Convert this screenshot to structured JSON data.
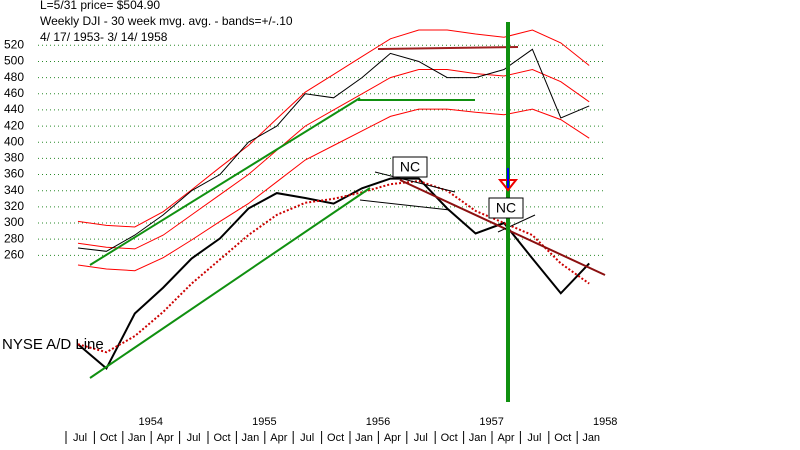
{
  "chart_data": {
    "type": "line",
    "title_lines": [
      "L=5/31  price= $504.90",
      "Weekly DJI - 30 week mvg. avg. - bands=+/-.10",
      "4/ 17/ 1953- 3/ 14/ 1958"
    ],
    "annotations": [
      "NYSE A/D Line",
      "NC",
      "NC"
    ],
    "categories": [
      "Jul",
      "Oct",
      "Jan",
      "Apr",
      "Jul",
      "Oct",
      "Jan",
      "Apr",
      "Jul",
      "Oct",
      "Jan",
      "Apr",
      "Jul",
      "Oct",
      "Jan",
      "Apr",
      "Jul",
      "Oct",
      "Jan"
    ],
    "year_labels": [
      "1954",
      "1955",
      "1956",
      "1957",
      "1958"
    ],
    "ylim": [
      80,
      560
    ],
    "yticks": [
      260,
      280,
      300,
      320,
      340,
      360,
      380,
      400,
      420,
      440,
      460,
      480,
      500,
      520
    ],
    "grid": true,
    "series": [
      {
        "color": "#ff0000",
        "style": "solid",
        "width": 1,
        "values": [
          302,
          297,
          295,
          314,
          341,
          369,
          396,
          429,
          462,
          484,
          506,
          528,
          539,
          539,
          534,
          530,
          539,
          523,
          495
        ]
      },
      {
        "color": "#ff0000",
        "style": "solid",
        "width": 1,
        "values": [
          248,
          243,
          241,
          257,
          279,
          302,
          324,
          351,
          378,
          396,
          414,
          432,
          441,
          441,
          437,
          434,
          441,
          428,
          405
        ]
      },
      {
        "color": "#ff0000",
        "style": "solid",
        "width": 1,
        "values": [
          275,
          270,
          268,
          285,
          310,
          335,
          360,
          390,
          420,
          440,
          460,
          480,
          490,
          490,
          485,
          482,
          490,
          475,
          450
        ]
      },
      {
        "color": "#000000",
        "style": "solid",
        "width": 1,
        "values": [
          269,
          265,
          285,
          310,
          340,
          360,
          400,
          420,
          460,
          455,
          480,
          510,
          500,
          480,
          480,
          490,
          515,
          430,
          445
        ]
      },
      {
        "color": "#000000",
        "style": "solid",
        "width": 2,
        "values": [
          150,
          120,
          188,
          220,
          256,
          281,
          318,
          337,
          331,
          324,
          343,
          355,
          355,
          318,
          287,
          300,
          256,
          213,
          250
        ]
      },
      {
        "color": "#cc0000",
        "style": "dotted",
        "width": 2,
        "values": [
          150,
          140,
          160,
          190,
          225,
          255,
          285,
          310,
          325,
          330,
          338,
          348,
          352,
          340,
          315,
          300,
          285,
          250,
          225
        ]
      }
    ]
  }
}
